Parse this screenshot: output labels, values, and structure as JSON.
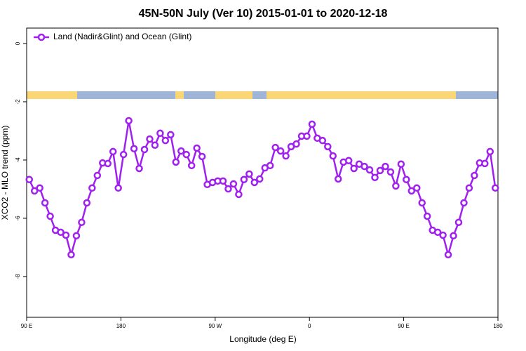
{
  "chart_data": {
    "type": "line",
    "title": "45N-50N July (Ver 10)   2015-01-01 to 2020-12-18",
    "x_label": "Longitude (deg E)",
    "y_label": "XCO2 - MLO trend (ppm)",
    "legend": "top-left",
    "x": [
      92.5,
      97.5,
      102.5,
      107.5,
      112.5,
      117.5,
      122.5,
      127.5,
      132.5,
      137.5,
      142.5,
      147.5,
      152.5,
      157.5,
      162.5,
      167.5,
      172.5,
      177.5,
      182.5,
      187.5,
      192.5,
      197.5,
      202.5,
      207.5,
      212.5,
      217.5,
      222.5,
      227.5,
      232.5,
      237.5,
      242.5,
      247.5,
      252.5,
      257.5,
      262.5,
      267.5,
      272.5,
      277.5,
      282.5,
      287.5,
      292.5,
      297.5,
      302.5,
      307.5,
      312.5,
      317.5,
      322.5,
      327.5,
      332.5,
      337.5,
      342.5,
      347.5,
      352.5,
      357.5,
      362.5,
      367.5,
      372.5,
      377.5,
      382.5,
      387.5,
      392.5,
      397.5,
      402.5,
      407.5,
      412.5,
      417.5,
      422.5,
      427.5,
      432.5,
      437.5,
      442.5,
      447.5,
      452.5,
      457.5,
      462.5,
      467.5,
      472.5,
      477.5,
      482.5,
      487.5,
      492.5,
      497.5,
      502.5,
      507.5,
      512.5,
      517.5,
      522.5,
      527.5,
      532.5,
      537.5
    ],
    "series": [
      {
        "name": "Land (Nadir&Glint) and Ocean (Glint)",
        "color": "#a020f0",
        "values": [
          -4.67,
          -5.06,
          -4.96,
          -5.47,
          -5.93,
          -6.41,
          -6.48,
          -6.58,
          -7.25,
          -6.6,
          -6.14,
          -5.47,
          -4.96,
          -4.53,
          -4.1,
          -4.12,
          -3.71,
          -4.96,
          -3.81,
          -2.65,
          -3.61,
          -4.29,
          -3.64,
          -3.28,
          -3.49,
          -3.08,
          -3.33,
          -3.13,
          -4.07,
          -3.69,
          -3.81,
          -4.19,
          -3.59,
          -3.88,
          -4.84,
          -4.77,
          -4.72,
          -4.72,
          -4.99,
          -4.82,
          -5.18,
          -4.67,
          -4.48,
          -4.77,
          -4.65,
          -4.27,
          -4.19,
          -3.57,
          -3.69,
          -3.86,
          -3.54,
          -3.45,
          -3.18,
          -3.18,
          -2.77,
          -3.25,
          -3.33,
          -3.54,
          -3.86,
          -4.65,
          -4.07,
          -4.02,
          -4.29,
          -4.14,
          -4.22,
          -4.34,
          -4.6,
          -4.36,
          -4.22,
          -4.41,
          -4.89,
          -4.14,
          -4.67,
          -5.06,
          -4.96,
          -5.47,
          -5.93,
          -6.41,
          -6.48,
          -6.58,
          -7.25,
          -6.6,
          -6.14,
          -5.47,
          -4.96,
          -4.53,
          -4.1,
          -4.12,
          -3.71,
          -4.96
        ]
      }
    ],
    "xlim": [
      90,
      540
    ],
    "xticks": [
      {
        "value": 90,
        "label": "90 E"
      },
      {
        "value": 180,
        "label": "180"
      },
      {
        "value": 270,
        "label": "90 W"
      },
      {
        "value": 360,
        "label": "0"
      },
      {
        "value": 450,
        "label": "90 E"
      },
      {
        "value": 540,
        "label": "180"
      }
    ],
    "ylim": [
      -9.4,
      0.53
    ],
    "yticks": [
      0,
      -2,
      -4,
      -6,
      -8
    ]
  }
}
